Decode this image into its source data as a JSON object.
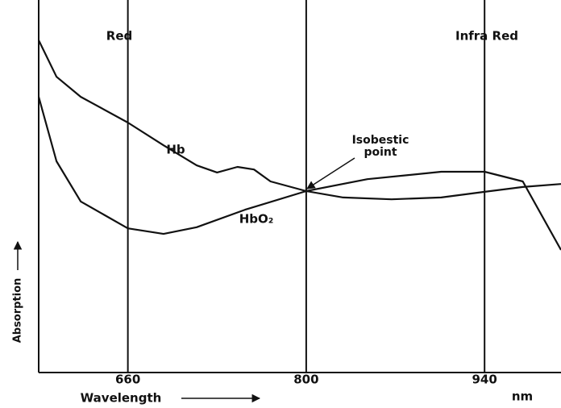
{
  "chart_data": {
    "type": "line",
    "x_label": "Wavelength",
    "x_unit": "nm",
    "y_label": "Absorption",
    "xlim": [
      590,
      1000
    ],
    "xticks": [
      660,
      800,
      940
    ],
    "ylim": [
      0,
      100
    ],
    "grid": true,
    "color": "#111111",
    "annotations": [
      "Red",
      "Infra Red",
      "Isobestic",
      "point"
    ],
    "series": [
      {
        "name": "Hb",
        "color": "#111111",
        "x": [
          590,
          604,
          623,
          660,
          688,
          714,
          730,
          746,
          759,
          772,
          800,
          829,
          867,
          906,
          940,
          970,
          1000
        ],
        "values": [
          89.2,
          79.4,
          74.0,
          67.1,
          61.0,
          55.6,
          53.7,
          55.2,
          54.5,
          51.3,
          48.7,
          47.0,
          46.5,
          47.0,
          48.5,
          49.8,
          50.6
        ]
      },
      {
        "name": "HbO₂",
        "color": "#111111",
        "x": [
          590,
          604,
          623,
          660,
          688,
          714,
          752,
          800,
          848,
          906,
          940,
          970,
          1000
        ],
        "values": [
          74.0,
          56.7,
          45.9,
          38.7,
          37.2,
          39.0,
          43.7,
          48.7,
          51.9,
          53.9,
          53.9,
          51.3,
          32.9
        ]
      }
    ]
  }
}
